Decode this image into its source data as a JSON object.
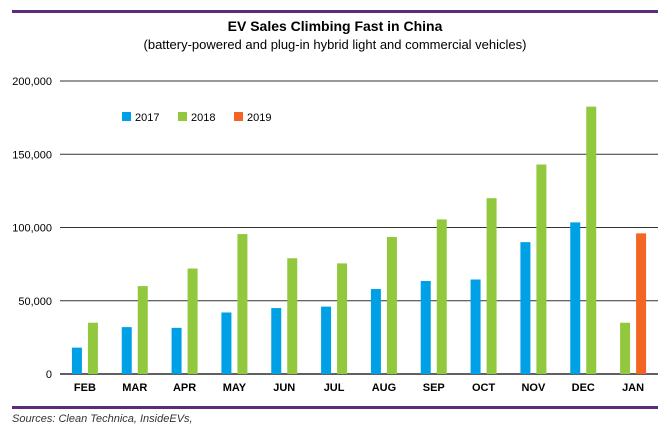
{
  "chart_data": {
    "type": "bar",
    "title": "EV Sales Climbing Fast in China",
    "subtitle": "(battery-powered and plug-in hybrid light and commercial vehicles)",
    "xlabel": "",
    "ylabel": "",
    "ylim": [
      0,
      200000
    ],
    "yticks": [
      0,
      50000,
      100000,
      150000,
      200000
    ],
    "ytick_labels": [
      "0",
      "50,000",
      "100,000",
      "150,000",
      "200,000"
    ],
    "grid": true,
    "legend_position": "top-left",
    "categories": [
      "FEB",
      "MAR",
      "APR",
      "MAY",
      "JUN",
      "JUL",
      "AUG",
      "SEP",
      "OCT",
      "NOV",
      "DEC",
      "JAN"
    ],
    "series": [
      {
        "name": "2017",
        "color": "#00a0e6",
        "values": [
          18000,
          32000,
          31500,
          42000,
          45000,
          46000,
          58000,
          63500,
          64500,
          90000,
          103500,
          null
        ]
      },
      {
        "name": "2018",
        "color": "#92c83e",
        "values": [
          35000,
          60000,
          72000,
          95500,
          79000,
          75500,
          93500,
          105500,
          120000,
          143000,
          182500,
          35000
        ]
      },
      {
        "name": "2019",
        "color": "#f26522",
        "values": [
          null,
          null,
          null,
          null,
          null,
          null,
          null,
          null,
          null,
          null,
          null,
          96000
        ]
      }
    ]
  },
  "footer": {
    "source": "Sources: Clean Technica, InsideEVs,"
  }
}
